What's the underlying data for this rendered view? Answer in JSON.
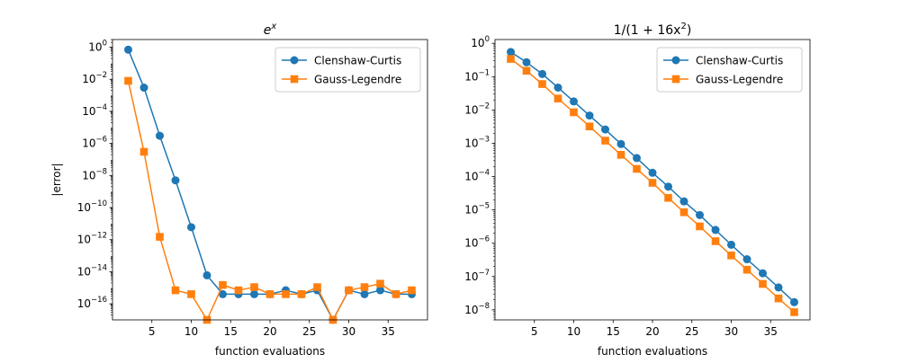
{
  "chart_data": [
    {
      "type": "line",
      "title": "e^x",
      "xlabel": "function evaluations",
      "ylabel": "|error|",
      "yscale": "log",
      "xlim": [
        0,
        40
      ],
      "ylim": [
        1e-17,
        3
      ],
      "xticks": [
        5,
        10,
        15,
        20,
        25,
        30,
        35
      ],
      "yticks": [
        {
          "value": 1,
          "base": "10",
          "exp": "0"
        },
        {
          "value": 0.01,
          "base": "10",
          "exp": "−2"
        },
        {
          "value": 0.0001,
          "base": "10",
          "exp": "−4"
        },
        {
          "value": 1e-06,
          "base": "10",
          "exp": "−6"
        },
        {
          "value": 1e-08,
          "base": "10",
          "exp": "−8"
        },
        {
          "value": 1e-10,
          "base": "10",
          "exp": "−10"
        },
        {
          "value": 1e-12,
          "base": "10",
          "exp": "−12"
        },
        {
          "value": 1e-14,
          "base": "10",
          "exp": "−14"
        },
        {
          "value": 1e-16,
          "base": "10",
          "exp": "−16"
        }
      ],
      "legend_position": "top-right",
      "x": [
        2,
        4,
        6,
        8,
        10,
        12,
        14,
        16,
        18,
        20,
        22,
        24,
        26,
        28,
        30,
        32,
        34,
        36,
        38
      ],
      "series": [
        {
          "name": "Clenshaw-Curtis",
          "color": "#1f77b4",
          "marker": "circle",
          "values": [
            0.7,
            0.003,
            3e-06,
            5e-09,
            6e-12,
            6e-15,
            4e-16,
            4e-16,
            4e-16,
            4e-16,
            7e-16,
            4e-16,
            7e-16,
            1e-17,
            7e-16,
            4e-16,
            7e-16,
            4e-16,
            4e-16
          ]
        },
        {
          "name": "Gauss-Legendre",
          "color": "#ff7f0e",
          "marker": "square",
          "values": [
            0.008,
            3e-07,
            1.5e-12,
            7e-16,
            4e-16,
            1e-17,
            1.5e-15,
            7e-16,
            1.1e-15,
            4e-16,
            4e-16,
            4e-16,
            1.1e-15,
            1e-17,
            7e-16,
            1.1e-15,
            1.8e-15,
            4e-16,
            7e-16
          ]
        }
      ]
    },
    {
      "type": "line",
      "title": "1/(1 + 16x^2)",
      "xlabel": "function evaluations",
      "ylabel": "",
      "yscale": "log",
      "xlim": [
        0,
        40
      ],
      "ylim": [
        5e-09,
        1.3
      ],
      "xticks": [
        5,
        10,
        15,
        20,
        25,
        30,
        35
      ],
      "yticks": [
        {
          "value": 1,
          "base": "10",
          "exp": "0"
        },
        {
          "value": 0.1,
          "base": "10",
          "exp": "−1"
        },
        {
          "value": 0.01,
          "base": "10",
          "exp": "−2"
        },
        {
          "value": 0.001,
          "base": "10",
          "exp": "−3"
        },
        {
          "value": 0.0001,
          "base": "10",
          "exp": "−4"
        },
        {
          "value": 1e-05,
          "base": "10",
          "exp": "−5"
        },
        {
          "value": 1e-06,
          "base": "10",
          "exp": "−6"
        },
        {
          "value": 1e-07,
          "base": "10",
          "exp": "−7"
        },
        {
          "value": 1e-08,
          "base": "10",
          "exp": "−8"
        }
      ],
      "legend_position": "top-right",
      "x": [
        2,
        4,
        6,
        8,
        10,
        12,
        14,
        16,
        18,
        20,
        22,
        24,
        26,
        28,
        30,
        32,
        34,
        36,
        38
      ],
      "series": [
        {
          "name": "Clenshaw-Curtis",
          "color": "#1f77b4",
          "marker": "circle",
          "values": [
            0.55,
            0.27,
            0.12,
            0.047,
            0.018,
            0.0068,
            0.0026,
            0.00095,
            0.00036,
            0.00013,
            5e-05,
            1.8e-05,
            7e-06,
            2.5e-06,
            9e-07,
            3.3e-07,
            1.25e-07,
            4.7e-08,
            1.7e-08
          ]
        },
        {
          "name": "Gauss-Legendre",
          "color": "#ff7f0e",
          "marker": "square",
          "values": [
            0.34,
            0.15,
            0.06,
            0.022,
            0.0085,
            0.0032,
            0.0012,
            0.00045,
            0.00017,
            6.5e-05,
            2.3e-05,
            8.5e-06,
            3.2e-06,
            1.15e-06,
            4.3e-07,
            1.6e-07,
            6e-08,
            2.2e-08,
            8.5e-09
          ]
        }
      ]
    }
  ]
}
